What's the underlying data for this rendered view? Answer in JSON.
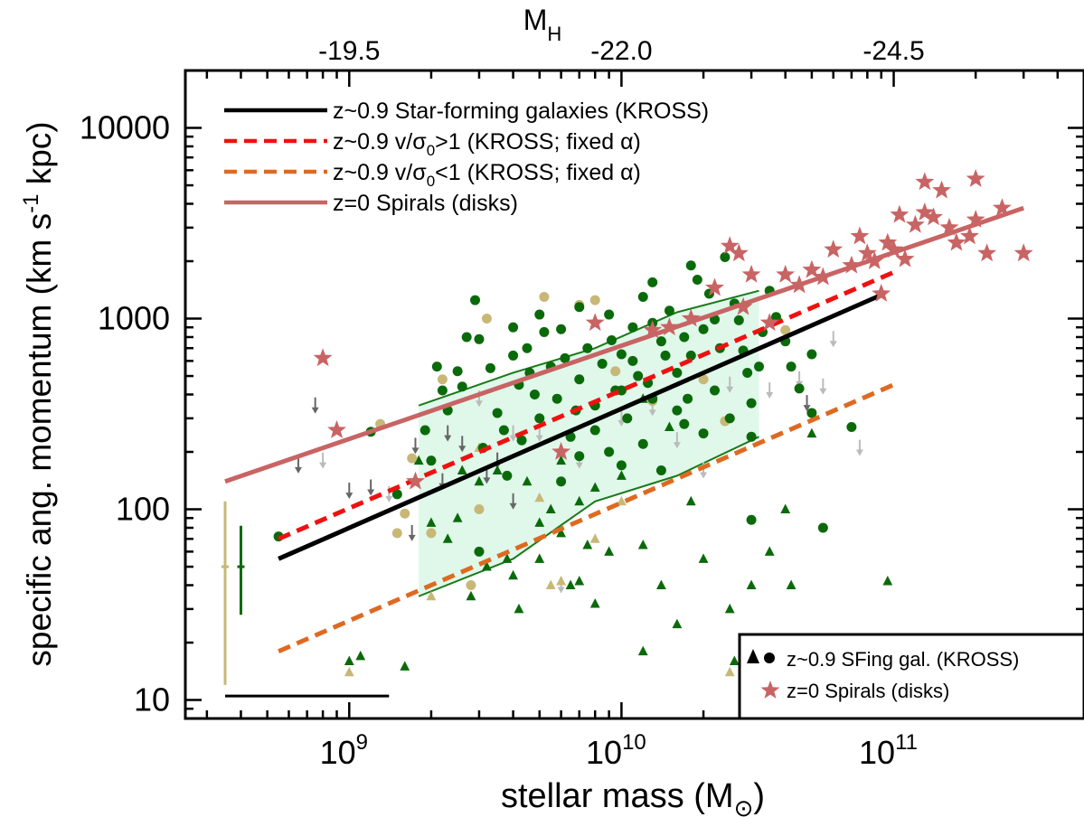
{
  "chart_data": {
    "type": "scatter",
    "xlabel": "stellar mass (M",
    "xlabel_sub": "⊙",
    "xlabel_close": ")",
    "ylabel": "specific ang. momentum (km s",
    "ylabel_sup": "-1",
    "ylabel_close": " kpc)",
    "top_label": "M",
    "top_label_sub": "H",
    "xscale": "log",
    "yscale": "log",
    "xlim": [
      250000000.0,
      500000000000.0
    ],
    "ylim": [
      8,
      20000
    ],
    "x_ticks": [
      {
        "value": 1000000000.0,
        "base": "10",
        "exp": "9"
      },
      {
        "value": 10000000000.0,
        "base": "10",
        "exp": "10"
      },
      {
        "value": 100000000000.0,
        "base": "10",
        "exp": "11"
      }
    ],
    "y_ticks": [
      {
        "value": 10,
        "label": "10"
      },
      {
        "value": 100,
        "label": "100"
      },
      {
        "value": 1000,
        "label": "1000"
      },
      {
        "value": 10000,
        "label": "10000"
      }
    ],
    "top_ticks": [
      {
        "value": 1000000000.0,
        "label": "-19.5"
      },
      {
        "value": 10000000000.0,
        "label": "-22.0"
      },
      {
        "value": 100000000000.0,
        "label": "-24.5"
      }
    ],
    "legend_top": [
      {
        "text": "z~0.9 Star-forming galaxies (KROSS)",
        "color": "#000000",
        "style": "solid"
      },
      {
        "text": "z~0.9 v/σ",
        "sub": "0",
        "rest": ">1 (KROSS; fixed α)",
        "color": "#ee1111",
        "style": "dashed"
      },
      {
        "text": "z~0.9 v/σ",
        "sub": "0",
        "rest": "<1 (KROSS; fixed α)",
        "color": "#dd6a22",
        "style": "dashed"
      },
      {
        "text": "z=0 Spirals (disks)",
        "color": "#c96464",
        "style": "solid"
      }
    ],
    "legend_bottom": [
      {
        "text": "z~0.9 SFing gal. (KROSS)",
        "marker": "triangle-circle",
        "color": "#000000"
      },
      {
        "text": "z=0 Spirals (disks)",
        "marker": "star",
        "color": "#c96464"
      }
    ],
    "legend_placement_top": "top-left",
    "legend_placement_bottom": "bottom-right",
    "colors": {
      "green": "#0a6a0a",
      "tan": "#c8b878",
      "grey_arrow": "#666666",
      "light_arrow": "#bbbbbb",
      "band": "#dff8ea",
      "band_edge": "#1a7a1a"
    },
    "fit_lines": [
      {
        "name": "kross",
        "color": "#000000",
        "style": "solid",
        "x": [
          550000000.0,
          90000000000.0
        ],
        "y": [
          55,
          1330
        ]
      },
      {
        "name": "vsig_gt1",
        "color": "#ee1111",
        "style": "dashed",
        "x": [
          550000000.0,
          100000000000.0
        ],
        "y": [
          70,
          1750
        ]
      },
      {
        "name": "vsig_lt1",
        "color": "#dd6a22",
        "style": "dashed",
        "x": [
          550000000.0,
          100000000000.0
        ],
        "y": [
          18,
          450
        ]
      },
      {
        "name": "z0_spirals",
        "color": "#c96464",
        "style": "solid",
        "x": [
          350000000.0,
          300000000000.0
        ],
        "y": [
          140,
          3800
        ]
      }
    ],
    "band": {
      "x": [
        1800000000.0,
        4000000000.0,
        8000000000.0,
        16000000000.0,
        32000000000.0
      ],
      "y_upper": [
        350,
        520,
        700,
        1080,
        1400
      ],
      "y_lower": [
        35,
        55,
        110,
        150,
        240
      ],
      "left_low_bound": 75
    },
    "error_bars": [
      {
        "x": 350000000.0,
        "y": 50,
        "y_low": 12,
        "y_high": 110,
        "color": "#c8b878"
      },
      {
        "x": 400000000.0,
        "y": 50,
        "y_low": 28,
        "y_high": 82,
        "color": "#0a6a0a"
      }
    ],
    "scale_bar": {
      "x": [
        350000000.0,
        1400000000.0
      ],
      "y": 10.5
    },
    "stars": [
      [
        800000000.0,
        620
      ],
      [
        900000000.0,
        260
      ],
      [
        1750000000.0,
        140
      ],
      [
        6000000000.0,
        200
      ],
      [
        8000000000.0,
        950
      ],
      [
        13000000000.0,
        870
      ],
      [
        15000000000.0,
        900
      ],
      [
        18000000000.0,
        1000
      ],
      [
        22000000000.0,
        1450
      ],
      [
        25000000000.0,
        2400
      ],
      [
        27000000000.0,
        2200
      ],
      [
        28000000000.0,
        1150
      ],
      [
        30000000000.0,
        1700
      ],
      [
        35000000000.0,
        950
      ],
      [
        40000000000.0,
        1700
      ],
      [
        45000000000.0,
        1500
      ],
      [
        50000000000.0,
        1800
      ],
      [
        55000000000.0,
        1650
      ],
      [
        60000000000.0,
        2300
      ],
      [
        70000000000.0,
        1900
      ],
      [
        75000000000.0,
        2700
      ],
      [
        80000000000.0,
        2200
      ],
      [
        85000000000.0,
        2000
      ],
      [
        90000000000.0,
        1350
      ],
      [
        95000000000.0,
        2500
      ],
      [
        100000000000.0,
        2300
      ],
      [
        105000000000.0,
        3500
      ],
      [
        110000000000.0,
        2050
      ],
      [
        120000000000.0,
        3100
      ],
      [
        130000000000.0,
        3600
      ],
      [
        140000000000.0,
        3400
      ],
      [
        150000000000.0,
        4700
      ],
      [
        160000000000.0,
        3000
      ],
      [
        170000000000.0,
        2500
      ],
      [
        190000000000.0,
        2700
      ],
      [
        200000000000.0,
        3300
      ],
      [
        220000000000.0,
        2200
      ],
      [
        250000000000.0,
        3800
      ],
      [
        200000000000.0,
        5400
      ],
      [
        300000000000.0,
        2200
      ],
      [
        130000000000.0,
        5200
      ]
    ],
    "circles_green": [
      [
        550000000.0,
        72
      ],
      [
        1200000000.0,
        255
      ],
      [
        1500000000.0,
        120
      ],
      [
        2200000000.0,
        420
      ],
      [
        2500000000.0,
        530
      ],
      [
        2700000000.0,
        800
      ],
      [
        2900000000.0,
        1250
      ],
      [
        3000000000.0,
        60
      ],
      [
        3300000000.0,
        550
      ],
      [
        3500000000.0,
        320
      ],
      [
        3700000000.0,
        260
      ],
      [
        4000000000.0,
        640
      ],
      [
        4200000000.0,
        450
      ],
      [
        4500000000.0,
        700
      ],
      [
        4800000000.0,
        400
      ],
      [
        5000000000.0,
        300
      ],
      [
        5200000000.0,
        850
      ],
      [
        5500000000.0,
        560
      ],
      [
        5800000000.0,
        380
      ],
      [
        6200000000.0,
        620
      ],
      [
        6500000000.0,
        240
      ],
      [
        7000000000.0,
        480
      ],
      [
        7500000000.0,
        700
      ],
      [
        8000000000.0,
        350
      ],
      [
        8500000000.0,
        580
      ],
      [
        9000000000.0,
        1050
      ],
      [
        9500000000.0,
        420
      ],
      [
        10000000000.0,
        650
      ],
      [
        10500000000.0,
        300
      ],
      [
        11000000000.0,
        900
      ],
      [
        11500000000.0,
        500
      ],
      [
        12000000000.0,
        1300
      ],
      [
        13000000000.0,
        380
      ],
      [
        14000000000.0,
        760
      ],
      [
        15000000000.0,
        1100
      ],
      [
        16000000000.0,
        520
      ],
      [
        17000000000.0,
        280
      ],
      [
        18000000000.0,
        640
      ],
      [
        19000000000.0,
        1600
      ],
      [
        20000000000.0,
        880
      ],
      [
        22000000000.0,
        420
      ],
      [
        24000000000.0,
        2100
      ],
      [
        26000000000.0,
        1200
      ],
      [
        28000000000.0,
        680
      ],
      [
        30000000000.0,
        360
      ],
      [
        32000000000.0,
        560
      ],
      [
        35000000000.0,
        1400
      ],
      [
        40000000000.0,
        760
      ],
      [
        45000000000.0,
        430
      ],
      [
        50000000000.0,
        650
      ],
      [
        55000000000.0,
        80
      ],
      [
        30000000000.0,
        88
      ],
      [
        2000000000.0,
        180
      ],
      [
        2300000000.0,
        330
      ],
      [
        3100000000.0,
        210
      ],
      [
        3800000000.0,
        150
      ],
      [
        4300000000.0,
        230
      ],
      [
        6000000000.0,
        140
      ],
      [
        7000000000.0,
        190
      ],
      [
        8000000000.0,
        260
      ],
      [
        9000000000.0,
        200
      ],
      [
        10000000000.0,
        170
      ],
      [
        12000000000.0,
        220
      ],
      [
        14000000000.0,
        160
      ],
      [
        16000000000.0,
        330
      ],
      [
        20000000000.0,
        250
      ],
      [
        25000000000.0,
        300
      ],
      [
        30000000000.0,
        240
      ],
      [
        50000000000.0,
        320
      ],
      [
        70000000000.0,
        270
      ],
      [
        10000000000.0,
        420
      ],
      [
        11000000000.0,
        600
      ],
      [
        13000000000.0,
        950
      ],
      [
        17000000000.0,
        800
      ],
      [
        21000000000.0,
        1350
      ],
      [
        23000000000.0,
        700
      ],
      [
        27000000000.0,
        980
      ],
      [
        33000000000.0,
        850
      ],
      [
        18000000000.0,
        1900
      ],
      [
        13000000000.0,
        1550
      ],
      [
        7000000000.0,
        1150
      ],
      [
        6000000000.0,
        880
      ],
      [
        5000000000.0,
        1050
      ],
      [
        4000000000.0,
        900
      ],
      [
        3000000000.0,
        780
      ],
      [
        2600000000.0,
        440
      ],
      [
        1900000000.0,
        260
      ],
      [
        2100000000.0,
        560
      ],
      [
        4600000000.0,
        520
      ],
      [
        6800000000.0,
        330
      ],
      [
        9200000000.0,
        770
      ],
      [
        12500000000.0,
        460
      ],
      [
        14500000000.0,
        640
      ],
      [
        17500000000.0,
        380
      ],
      [
        22000000000.0,
        990
      ],
      [
        29000000000.0,
        520
      ],
      [
        42000000000.0,
        560
      ],
      [
        37000000000.0,
        1020
      ]
    ],
    "circles_tan": [
      [
        1300000000.0,
        280
      ],
      [
        1500000000.0,
        75
      ],
      [
        1700000000.0,
        185
      ],
      [
        2200000000.0,
        480
      ],
      [
        2800000000.0,
        40
      ],
      [
        3000000000.0,
        100
      ],
      [
        3200000000.0,
        1000
      ],
      [
        5200000000.0,
        1300
      ],
      [
        7000000000.0,
        1180
      ],
      [
        8000000000.0,
        1250
      ],
      [
        9500000000.0,
        530
      ],
      [
        13000000000.0,
        370
      ],
      [
        20000000000.0,
        480
      ],
      [
        24000000000.0,
        290
      ],
      [
        40000000000.0,
        870
      ],
      [
        2000000000.0,
        75
      ],
      [
        1600000000.0,
        95
      ]
    ],
    "triangles_green": [
      [
        1800000000.0,
        180
      ],
      [
        2500000000.0,
        90
      ],
      [
        3000000000.0,
        140
      ],
      [
        3500000000.0,
        160
      ],
      [
        4000000000.0,
        45
      ],
      [
        4500000000.0,
        140
      ],
      [
        5000000000.0,
        85
      ],
      [
        5500000000.0,
        100
      ],
      [
        6000000000.0,
        75
      ],
      [
        6500000000.0,
        40
      ],
      [
        7000000000.0,
        110
      ],
      [
        7500000000.0,
        65
      ],
      [
        8000000000.0,
        32
      ],
      [
        9000000000.0,
        60
      ],
      [
        10000000000.0,
        150
      ],
      [
        12000000000.0,
        65
      ],
      [
        14000000000.0,
        40
      ],
      [
        16000000000.0,
        25
      ],
      [
        18000000000.0,
        110
      ],
      [
        20000000000.0,
        55
      ],
      [
        25000000000.0,
        30
      ],
      [
        30000000000.0,
        40
      ],
      [
        35000000000.0,
        60
      ],
      [
        40000000000.0,
        100
      ],
      [
        50000000000.0,
        250
      ],
      [
        95000000000.0,
        42
      ],
      [
        1000000000.0,
        16
      ],
      [
        1100000000.0,
        17
      ],
      [
        1600000000.0,
        15
      ],
      [
        2000000000.0,
        85
      ],
      [
        2300000000.0,
        70
      ],
      [
        2600000000.0,
        160
      ],
      [
        3200000000.0,
        50
      ],
      [
        12000000000.0,
        18
      ],
      [
        26000000000.0,
        16
      ],
      [
        42000000000.0,
        40
      ],
      [
        15000000000.0,
        270
      ],
      [
        12000000000.0,
        380
      ],
      [
        8000000000.0,
        130
      ],
      [
        6000000000.0,
        180
      ],
      [
        5000000000.0,
        55
      ],
      [
        4200000000.0,
        30
      ],
      [
        2800000000.0,
        35
      ],
      [
        3800000000.0,
        55
      ],
      [
        7000000000.0,
        42
      ]
    ],
    "triangles_tan": [
      [
        1000000000.0,
        14
      ],
      [
        2000000000.0,
        35
      ],
      [
        5500000000.0,
        40
      ],
      [
        6000000000.0,
        42
      ],
      [
        8000000000.0,
        70
      ],
      [
        10000000000.0,
        110
      ],
      [
        25000000000.0,
        14
      ],
      [
        3000000000.0,
        210
      ],
      [
        5000000000.0,
        115
      ]
    ],
    "arrows_dark": [
      [
        650000000.0,
        170
      ],
      [
        750000000.0,
        350
      ],
      [
        1000000000.0,
        125
      ],
      [
        1200000000.0,
        130
      ],
      [
        1700000000.0,
        75
      ],
      [
        2200000000.0,
        140
      ],
      [
        2300000000.0,
        250
      ],
      [
        2600000000.0,
        220
      ],
      [
        3200000000.0,
        150
      ],
      [
        4000000000.0,
        110
      ],
      [
        3500000000.0,
        180
      ],
      [
        1750000000.0,
        215
      ],
      [
        48000000000.0,
        360
      ]
    ],
    "arrows_light": [
      [
        800000000.0,
        180
      ],
      [
        1400000000.0,
        120
      ],
      [
        3000000000.0,
        380
      ],
      [
        3500000000.0,
        180
      ],
      [
        4000000000.0,
        250
      ],
      [
        5000000000.0,
        250
      ],
      [
        6000000000.0,
        40
      ],
      [
        7000000000.0,
        180
      ],
      [
        10000000000.0,
        300
      ],
      [
        13000000000.0,
        340
      ],
      [
        16000000000.0,
        230
      ],
      [
        20000000000.0,
        160
      ],
      [
        25000000000.0,
        450
      ],
      [
        35000000000.0,
        420
      ],
      [
        45000000000.0,
        480
      ],
      [
        55000000000.0,
        440
      ],
      [
        60000000000.0,
        780
      ],
      [
        75000000000.0,
        210
      ]
    ]
  }
}
